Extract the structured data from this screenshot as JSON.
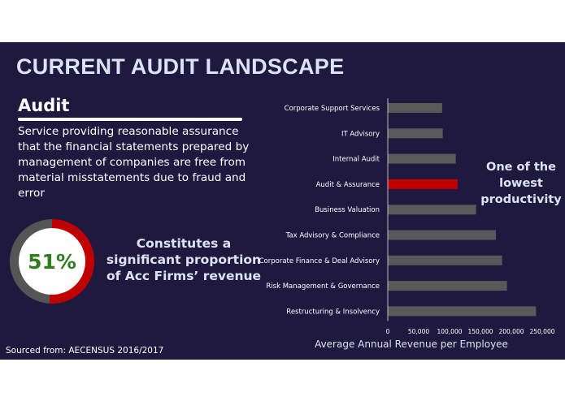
{
  "slide": {
    "title": "CURRENT AUDIT LANDSCAPE",
    "heading": "Audit",
    "description": "Service providing reasonable assurance that the financial statements prepared by management of companies are free from material misstatements due to fraud and error",
    "donut": {
      "value_label": "51%",
      "fraction": 0.51,
      "fill_color": "#c00000",
      "track_color": "#555555"
    },
    "revenue_callout": "Constitutes a significant proportion of Acc Firms’ revenue",
    "productivity_callout": "One of the lowest productivity",
    "source": "Sourced from: AECENSUS 2016/2017"
  },
  "chart_data": {
    "type": "bar",
    "orientation": "horizontal",
    "categories": [
      "Corporate Support Services",
      "IT Advisory",
      "Internal Audit",
      "Audit & Assurance",
      "Business Valuation",
      "Tax Advisory & Compliance",
      "Corporate Finance & Deal Advisory",
      "Risk Management & Governance",
      "Restructuring & Insolvency"
    ],
    "values": [
      88000,
      89000,
      110000,
      113000,
      143000,
      175000,
      185000,
      193000,
      240000
    ],
    "highlight": "Audit & Assurance",
    "bar_color": "#595959",
    "highlight_color": "#c00000",
    "xlabel": "Average Annual Revenue per Employee",
    "xlim": [
      0,
      250000
    ],
    "xticks": [
      "0",
      "50,000",
      "100,000",
      "150,000",
      "200,000",
      "250,000"
    ],
    "grid": false
  }
}
